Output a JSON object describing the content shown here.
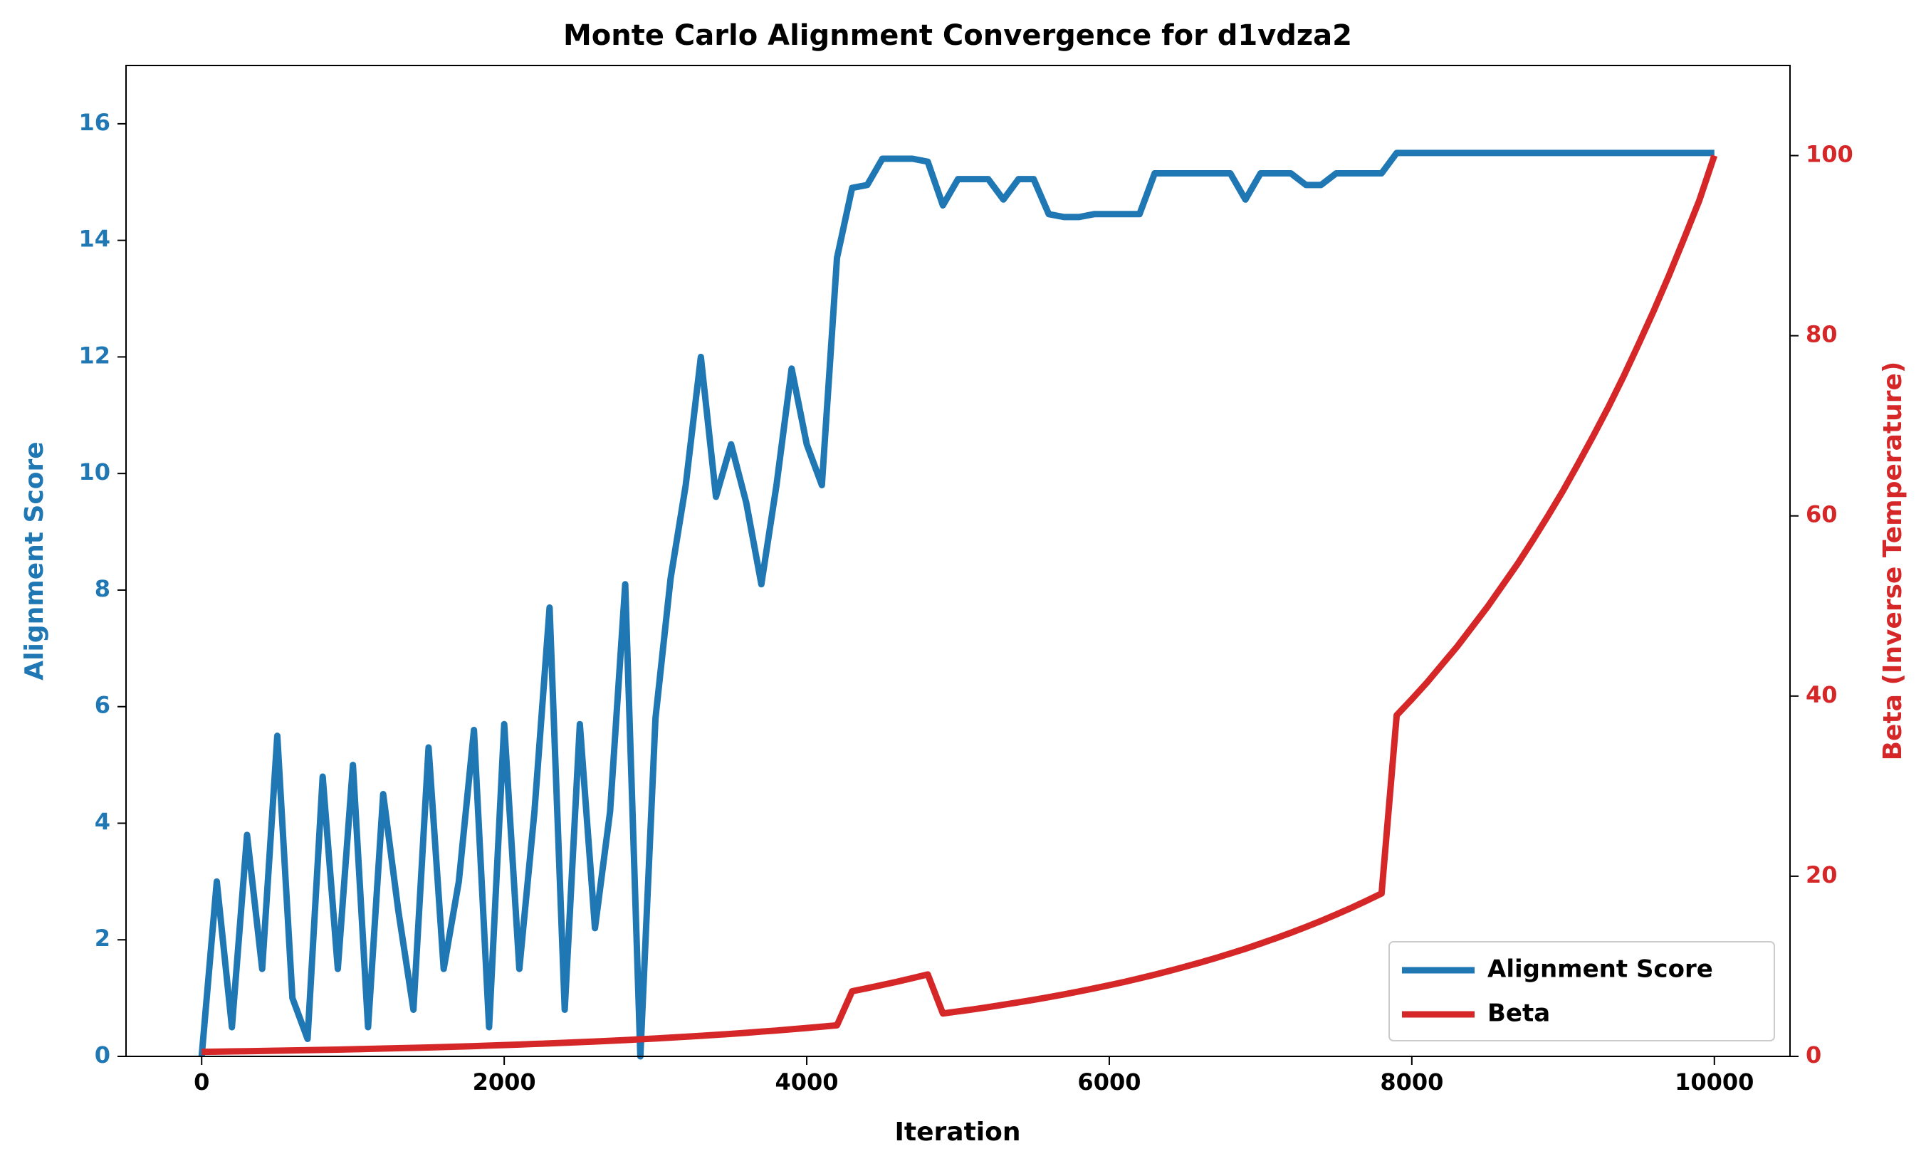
{
  "chart_data": {
    "type": "line",
    "title": "Monte Carlo Alignment Convergence for d1vdza2",
    "x_label": "Iteration",
    "y_label": "Alignment Score",
    "y2_label": "Beta (Inverse Temperature)",
    "x": [
      0,
      100,
      200,
      300,
      400,
      500,
      600,
      700,
      800,
      900,
      1000,
      1100,
      1200,
      1300,
      1400,
      1500,
      1600,
      1700,
      1800,
      1900,
      2000,
      2100,
      2200,
      2300,
      2400,
      2500,
      2600,
      2700,
      2800,
      2900,
      3000,
      3100,
      3200,
      3300,
      3400,
      3500,
      3600,
      3700,
      3800,
      3900,
      4000,
      4100,
      4200,
      4300,
      4400,
      4500,
      4600,
      4700,
      4800,
      4900,
      5000,
      5100,
      5200,
      5300,
      5400,
      5500,
      5600,
      5700,
      5800,
      5900,
      6000,
      6100,
      6200,
      6300,
      6400,
      6500,
      6600,
      6700,
      6800,
      6900,
      7000,
      7100,
      7200,
      7300,
      7400,
      7500,
      7600,
      7700,
      7800,
      7900,
      8000,
      8100,
      8200,
      8300,
      8400,
      8500,
      8600,
      8700,
      8800,
      8900,
      9000,
      9100,
      9200,
      9300,
      9400,
      9500,
      9600,
      9700,
      9800,
      9900,
      10000
    ],
    "series": [
      {
        "name": "Alignment Score",
        "color": "#1f77b4",
        "axis": "y",
        "values": [
          0,
          3.0,
          0.5,
          3.8,
          1.5,
          5.5,
          1.0,
          0.3,
          4.8,
          1.5,
          5.0,
          0.5,
          4.5,
          2.5,
          0.8,
          5.3,
          1.5,
          3.0,
          5.6,
          0.5,
          5.7,
          1.5,
          4.2,
          7.7,
          0.8,
          5.7,
          2.2,
          4.2,
          8.1,
          0,
          5.8,
          8.2,
          9.8,
          12.0,
          9.6,
          10.5,
          9.5,
          8.1,
          9.8,
          11.8,
          10.5,
          9.8,
          13.7,
          14.9,
          14.95,
          15.4,
          15.4,
          15.4,
          15.35,
          14.6,
          15.05,
          15.05,
          15.05,
          14.7,
          15.05,
          15.05,
          14.45,
          14.4,
          14.4,
          14.45,
          14.45,
          14.45,
          14.45,
          15.15,
          15.15,
          15.15,
          15.15,
          15.15,
          15.15,
          14.7,
          15.15,
          15.15,
          15.15,
          14.95,
          14.95,
          15.15,
          15.15,
          15.15,
          15.15,
          15.5,
          15.5,
          15.5,
          15.5,
          15.5,
          15.5,
          15.5,
          15.5,
          15.5,
          15.5,
          15.5,
          15.5,
          15.5,
          15.5,
          15.5,
          15.5,
          15.5,
          15.5,
          15.5,
          15.5,
          15.5,
          15.5
        ]
      },
      {
        "name": "Beta",
        "color": "#d62728",
        "axis": "y2",
        "values": [
          0.5,
          0.52,
          0.55,
          0.57,
          0.6,
          0.63,
          0.66,
          0.69,
          0.72,
          0.75,
          0.79,
          0.83,
          0.87,
          0.91,
          0.95,
          0.99,
          1.04,
          1.09,
          1.14,
          1.2,
          1.25,
          1.31,
          1.38,
          1.44,
          1.51,
          1.58,
          1.65,
          1.73,
          1.81,
          1.9,
          1.99,
          2.08,
          2.18,
          2.28,
          2.39,
          2.5,
          2.62,
          2.75,
          2.87,
          3.01,
          3.15,
          3.3,
          3.45,
          7.23,
          7.57,
          7.93,
          8.3,
          8.69,
          9.1,
          4.76,
          4.99,
          5.22,
          5.47,
          5.73,
          6.0,
          6.28,
          6.57,
          6.88,
          7.21,
          7.55,
          7.9,
          8.27,
          8.66,
          9.07,
          9.5,
          9.95,
          10.41,
          10.9,
          11.42,
          11.95,
          12.52,
          13.11,
          13.72,
          14.37,
          15.04,
          15.75,
          16.49,
          17.27,
          18.08,
          37.87,
          39.65,
          41.5,
          43.5,
          45.5,
          47.7,
          49.9,
          52.3,
          54.7,
          57.3,
          60.0,
          62.8,
          65.8,
          68.9,
          72.1,
          75.5,
          79.1,
          82.8,
          86.7,
          90.8,
          95.0,
          100
        ]
      }
    ],
    "xlim": [
      -500,
      10500
    ],
    "xticks": [
      0,
      2000,
      4000,
      6000,
      8000,
      10000
    ],
    "ylim": [
      0,
      17
    ],
    "yticks": [
      0,
      2,
      4,
      6,
      8,
      10,
      12,
      14,
      16
    ],
    "y2lim": [
      0,
      110
    ],
    "y2ticks": [
      0,
      20,
      40,
      60,
      80,
      100
    ],
    "legend": "lower right",
    "grid": false
  }
}
